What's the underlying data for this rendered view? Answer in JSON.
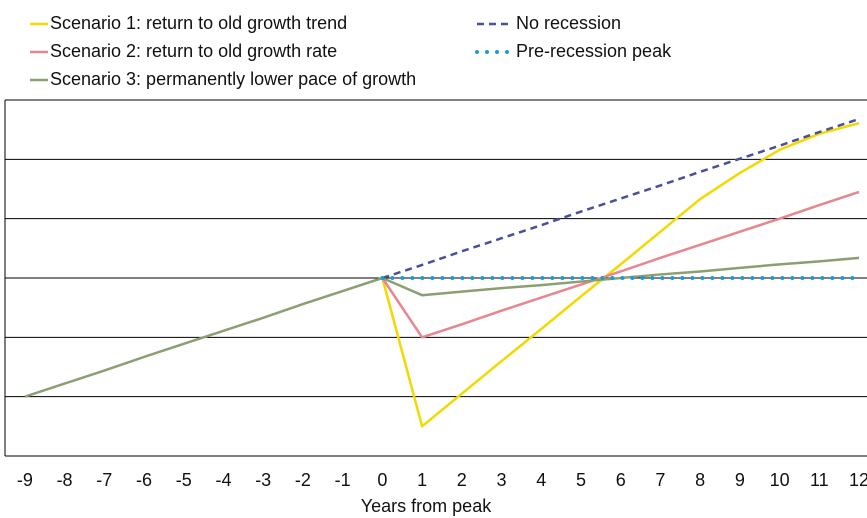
{
  "chart_data": {
    "type": "line",
    "x_label": "Years from peak",
    "x": [
      -9,
      -8,
      -7,
      -6,
      -5,
      -4,
      -3,
      -2,
      -1,
      0,
      1,
      2,
      3,
      4,
      5,
      6,
      7,
      8,
      9,
      10,
      11,
      12
    ],
    "xlim": [
      -9.5,
      12.2
    ],
    "xticks": [
      -9,
      -8,
      -7,
      -6,
      -5,
      -4,
      -3,
      -2,
      -1,
      0,
      1,
      2,
      3,
      4,
      5,
      6,
      7,
      8,
      9,
      10,
      11,
      12
    ],
    "ylim": [
      -3,
      3
    ],
    "yticks": [
      -3,
      -2,
      -1,
      0,
      1,
      2,
      3
    ],
    "grid": true,
    "series": [
      {
        "name": "Scenario 1: return to old growth trend",
        "color": "#f5d800",
        "dash": "solid",
        "values": [
          null,
          null,
          null,
          null,
          null,
          null,
          null,
          null,
          null,
          0,
          -2.5,
          -1.95,
          -1.4,
          -0.86,
          -0.31,
          0.23,
          0.78,
          1.33,
          1.77,
          2.16,
          2.43,
          2.61
        ]
      },
      {
        "name": "Scenario 2: return to old growth rate",
        "color": "#e8868f",
        "dash": "solid",
        "values": [
          null,
          null,
          null,
          null,
          null,
          null,
          null,
          null,
          null,
          0,
          -1,
          -0.78,
          -0.55,
          -0.33,
          -0.11,
          0.11,
          0.34,
          0.56,
          0.78,
          1.0,
          1.23,
          1.45
        ]
      },
      {
        "name": "Scenario 3: permanently lower pace of growth",
        "color": "#8aa070",
        "dash": "solid",
        "values": [
          -2,
          -1.78,
          -1.56,
          -1.33,
          -1.11,
          -0.89,
          -0.67,
          -0.44,
          -0.22,
          0,
          -0.29,
          -0.23,
          -0.17,
          -0.12,
          -0.06,
          0.0,
          0.06,
          0.11,
          0.17,
          0.23,
          0.28,
          0.34
        ]
      },
      {
        "name": "No recession",
        "color": "#4a5096",
        "dash": "dashed",
        "values": [
          null,
          null,
          null,
          null,
          null,
          null,
          null,
          null,
          null,
          0,
          0.22,
          0.45,
          0.67,
          0.89,
          1.12,
          1.34,
          1.56,
          1.79,
          2.01,
          2.23,
          2.46,
          2.68
        ]
      },
      {
        "name": "Pre-recession peak",
        "color": "#1e9ad6",
        "dash": "dotted",
        "values": [
          null,
          null,
          null,
          null,
          null,
          null,
          null,
          null,
          null,
          0,
          0,
          0,
          0,
          0,
          0,
          0,
          0,
          0,
          0,
          0,
          0,
          0
        ]
      }
    ]
  }
}
